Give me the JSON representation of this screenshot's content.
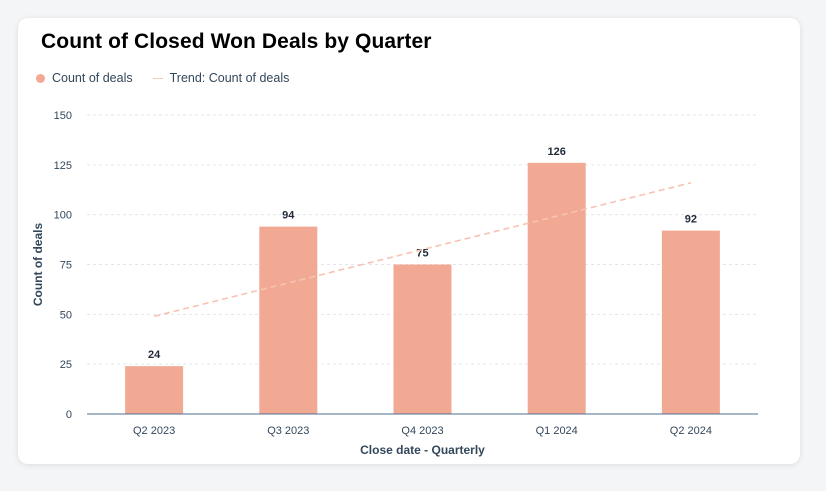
{
  "chart_data": {
    "type": "bar",
    "title": "Count of Closed Won Deals by Quarter",
    "categories": [
      "Q2 2023",
      "Q3 2023",
      "Q4 2023",
      "Q1 2024",
      "Q2 2024"
    ],
    "series": [
      {
        "name": "Count of deals",
        "values": [
          24,
          94,
          75,
          126,
          92
        ],
        "color": "#f2a993"
      }
    ],
    "trend": {
      "name": "Trend: Count of deals",
      "start": 49,
      "end": 116,
      "color": "#f6c3b3"
    },
    "xlabel": "Close date - Quarterly",
    "ylabel": "Count of deals",
    "ylim": [
      0,
      150
    ],
    "yticks": [
      0,
      25,
      50,
      75,
      100,
      125,
      150
    ],
    "grid": true,
    "legend_position": "top-left"
  }
}
